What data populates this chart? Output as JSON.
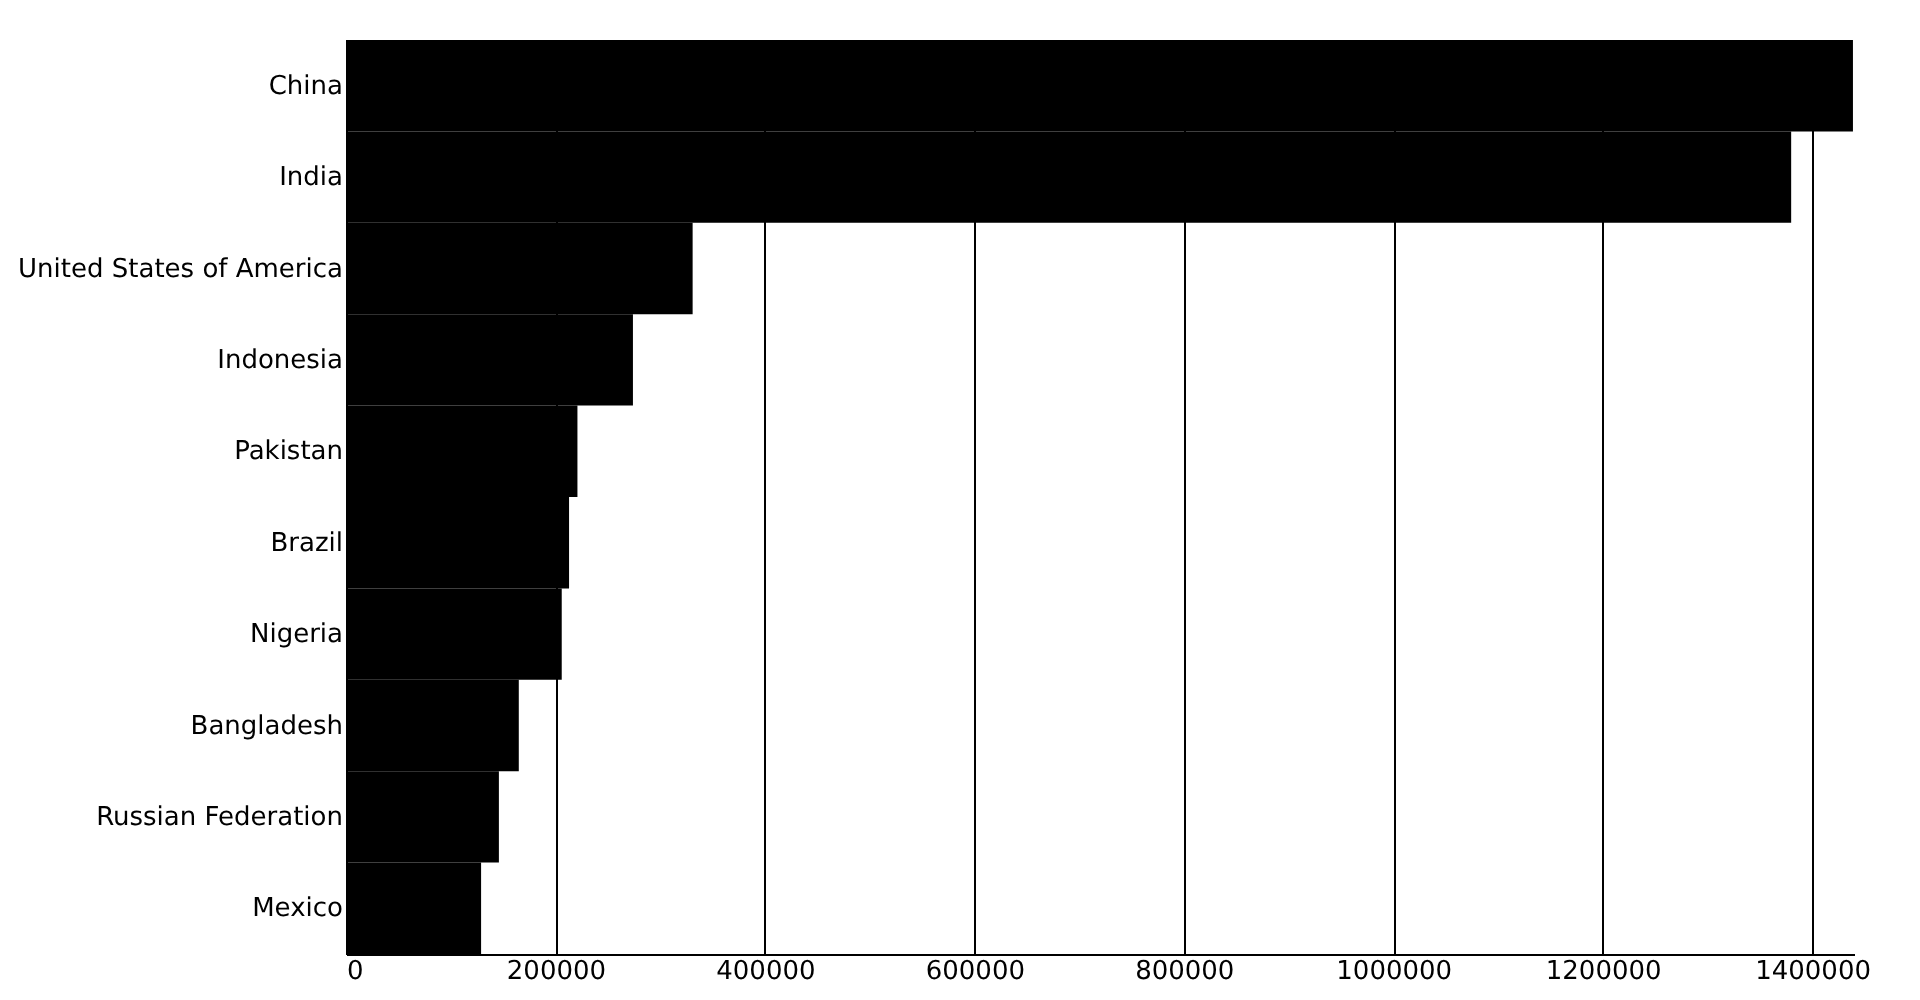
{
  "chart_data": {
    "type": "bar",
    "orientation": "horizontal",
    "categories": [
      "China",
      "India",
      "United States of America",
      "Indonesia",
      "Pakistan",
      "Brazil",
      "Nigeria",
      "Bangladesh",
      "Russian Federation",
      "Mexico"
    ],
    "values": [
      1439000,
      1380000,
      331000,
      274000,
      221000,
      213000,
      206000,
      165000,
      146000,
      129000
    ],
    "color": "#000000",
    "xlim": [
      0,
      1440000
    ],
    "xticks": [
      0,
      200000,
      400000,
      600000,
      800000,
      1000000,
      1200000,
      1400000
    ],
    "grid": "x"
  }
}
